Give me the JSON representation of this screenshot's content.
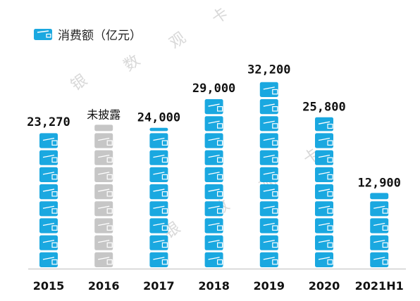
{
  "legend": {
    "label": "消费额（亿元）",
    "icon": "wallet-icon",
    "color": "#1aa8e0"
  },
  "watermark": {
    "chars": [
      "银",
      "数",
      "观",
      "卡"
    ]
  },
  "colors": {
    "bar": "#1aa8e0",
    "undisclosed": "#c6c6c6",
    "axis": "#bdbdbd"
  },
  "chart_data": {
    "type": "bar",
    "categories": [
      "2015",
      "2016",
      "2017",
      "2018",
      "2019",
      "2020",
      "2021H1"
    ],
    "series": [
      {
        "name": "消费额（亿元）",
        "values": [
          23270,
          null,
          24000,
          29000,
          32200,
          25800,
          12900
        ],
        "labels": [
          "23,270",
          "未披露",
          "24,000",
          "29,000",
          "32,200",
          "25,800",
          "12,900"
        ]
      }
    ],
    "title": "",
    "xlabel": "",
    "ylabel": "",
    "ylim": [
      0,
      33000
    ],
    "grid": false,
    "legend_position": "top-left"
  }
}
